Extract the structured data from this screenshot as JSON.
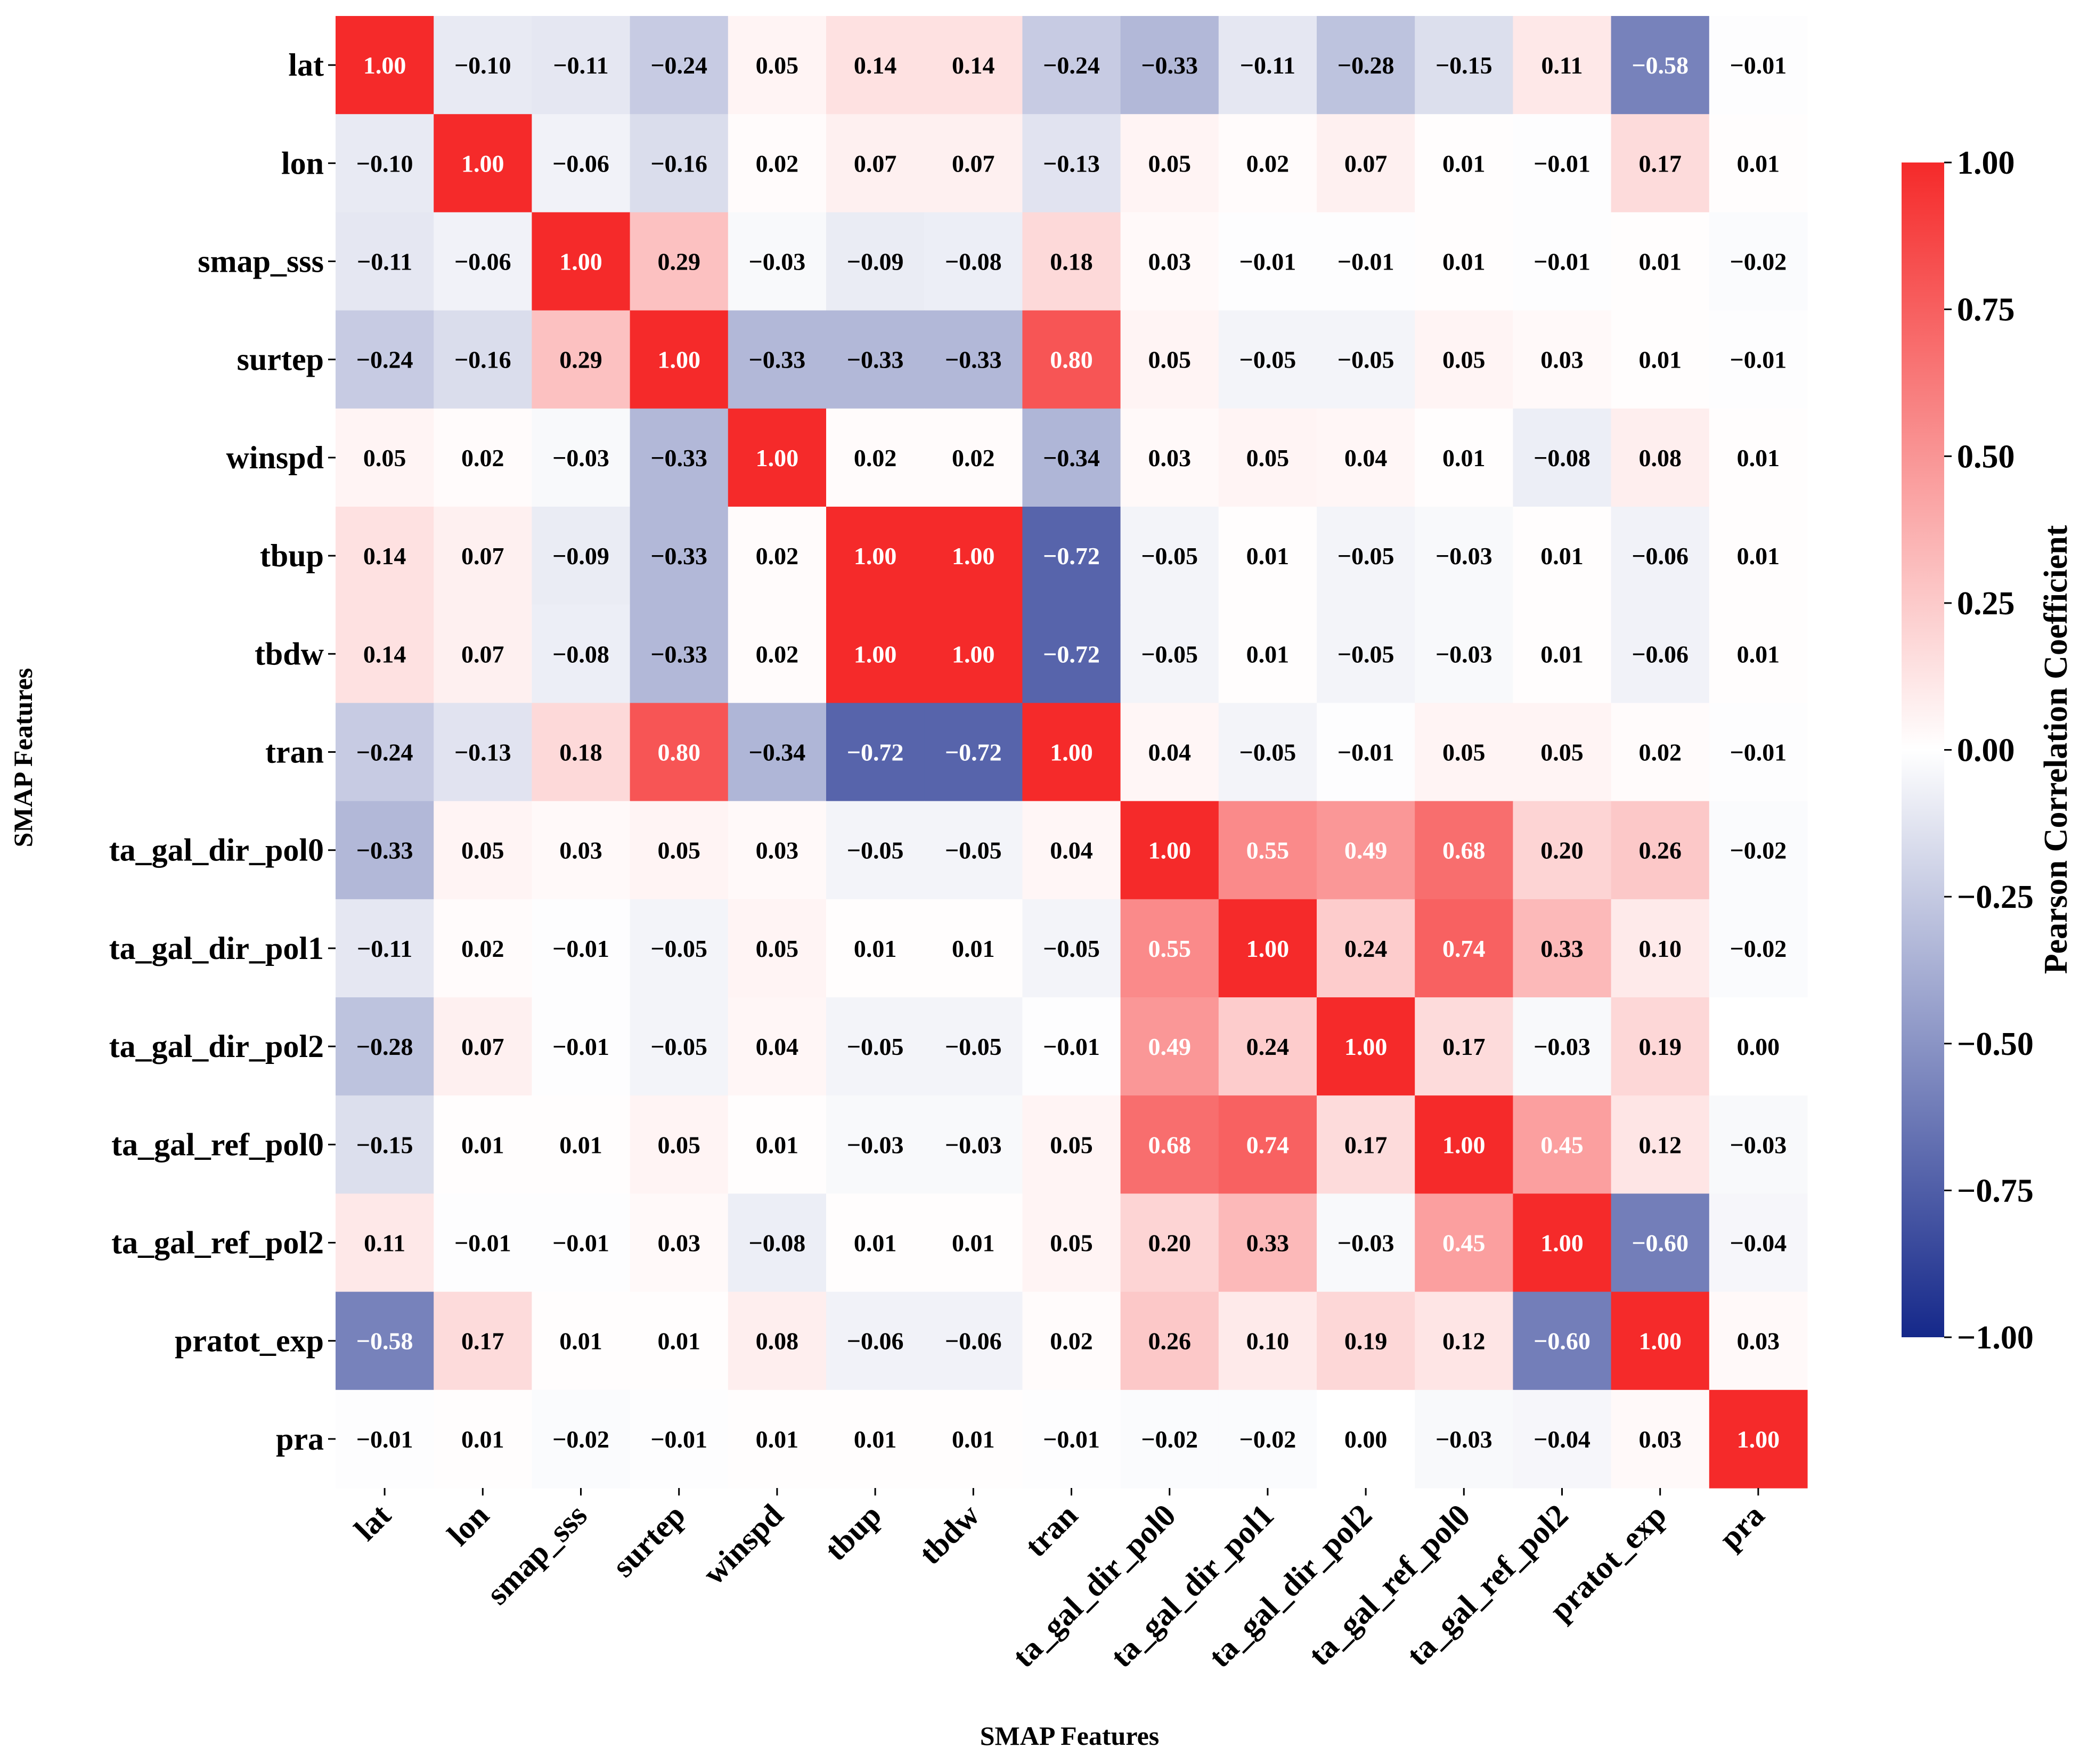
{
  "chart_data": {
    "type": "heatmap",
    "title": "",
    "xlabel": "SMAP Features",
    "ylabel": "SMAP Features",
    "colorbar_label": "Pearson Correlation Coefficient",
    "colorbar_ticks": [
      "1.00",
      "0.75",
      "0.50",
      "0.25",
      "0.00",
      "−0.25",
      "−0.50",
      "−0.75",
      "−1.00"
    ],
    "colorbar_tick_values": [
      1.0,
      0.75,
      0.5,
      0.25,
      0.0,
      -0.25,
      -0.5,
      -0.75,
      -1.0
    ],
    "vmin": -1.0,
    "vmax": 1.0,
    "colormap": {
      "low": "#15288a",
      "mid": "#ffffff",
      "high": "#f52a2a"
    },
    "labels": [
      "lat",
      "lon",
      "smap_sss",
      "surtep",
      "winspd",
      "tbup",
      "tbdw",
      "tran",
      "ta_gal_dir_pol0",
      "ta_gal_dir_pol1",
      "ta_gal_dir_pol2",
      "ta_gal_ref_pol0",
      "ta_gal_ref_pol2",
      "pratot_exp",
      "pra"
    ],
    "matrix": [
      [
        1.0,
        -0.1,
        -0.11,
        -0.24,
        0.05,
        0.14,
        0.14,
        -0.24,
        -0.33,
        -0.11,
        -0.28,
        -0.15,
        0.11,
        -0.58,
        -0.01
      ],
      [
        -0.1,
        1.0,
        -0.06,
        -0.16,
        0.02,
        0.07,
        0.07,
        -0.13,
        0.05,
        0.02,
        0.07,
        0.01,
        -0.01,
        0.17,
        0.01
      ],
      [
        -0.11,
        -0.06,
        1.0,
        0.29,
        -0.03,
        -0.09,
        -0.08,
        0.18,
        0.03,
        -0.01,
        -0.01,
        0.01,
        -0.01,
        0.01,
        -0.02
      ],
      [
        -0.24,
        -0.16,
        0.29,
        1.0,
        -0.33,
        -0.33,
        -0.33,
        0.8,
        0.05,
        -0.05,
        -0.05,
        0.05,
        0.03,
        0.01,
        -0.01
      ],
      [
        0.05,
        0.02,
        -0.03,
        -0.33,
        1.0,
        0.02,
        0.02,
        -0.34,
        0.03,
        0.05,
        0.04,
        0.01,
        -0.08,
        0.08,
        0.01
      ],
      [
        0.14,
        0.07,
        -0.09,
        -0.33,
        0.02,
        1.0,
        1.0,
        -0.72,
        -0.05,
        0.01,
        -0.05,
        -0.03,
        0.01,
        -0.06,
        0.01
      ],
      [
        0.14,
        0.07,
        -0.08,
        -0.33,
        0.02,
        1.0,
        1.0,
        -0.72,
        -0.05,
        0.01,
        -0.05,
        -0.03,
        0.01,
        -0.06,
        0.01
      ],
      [
        -0.24,
        -0.13,
        0.18,
        0.8,
        -0.34,
        -0.72,
        -0.72,
        1.0,
        0.04,
        -0.05,
        -0.01,
        0.05,
        0.05,
        0.02,
        -0.01
      ],
      [
        -0.33,
        0.05,
        0.03,
        0.05,
        0.03,
        -0.05,
        -0.05,
        0.04,
        1.0,
        0.55,
        0.49,
        0.68,
        0.2,
        0.26,
        -0.02
      ],
      [
        -0.11,
        0.02,
        -0.01,
        -0.05,
        0.05,
        0.01,
        0.01,
        -0.05,
        0.55,
        1.0,
        0.24,
        0.74,
        0.33,
        0.1,
        -0.02
      ],
      [
        -0.28,
        0.07,
        -0.01,
        -0.05,
        0.04,
        -0.05,
        -0.05,
        -0.01,
        0.49,
        0.24,
        1.0,
        0.17,
        -0.03,
        0.19,
        0.0
      ],
      [
        -0.15,
        0.01,
        0.01,
        0.05,
        0.01,
        -0.03,
        -0.03,
        0.05,
        0.68,
        0.74,
        0.17,
        1.0,
        0.45,
        0.12,
        -0.03
      ],
      [
        0.11,
        -0.01,
        -0.01,
        0.03,
        -0.08,
        0.01,
        0.01,
        0.05,
        0.2,
        0.33,
        -0.03,
        0.45,
        1.0,
        -0.6,
        -0.04
      ],
      [
        -0.58,
        0.17,
        0.01,
        0.01,
        0.08,
        -0.06,
        -0.06,
        0.02,
        0.26,
        0.1,
        0.19,
        0.12,
        -0.6,
        1.0,
        0.03
      ],
      [
        -0.01,
        0.01,
        -0.02,
        -0.01,
        0.01,
        0.01,
        0.01,
        -0.01,
        -0.02,
        -0.02,
        0.0,
        -0.03,
        -0.04,
        0.03,
        1.0
      ]
    ]
  }
}
